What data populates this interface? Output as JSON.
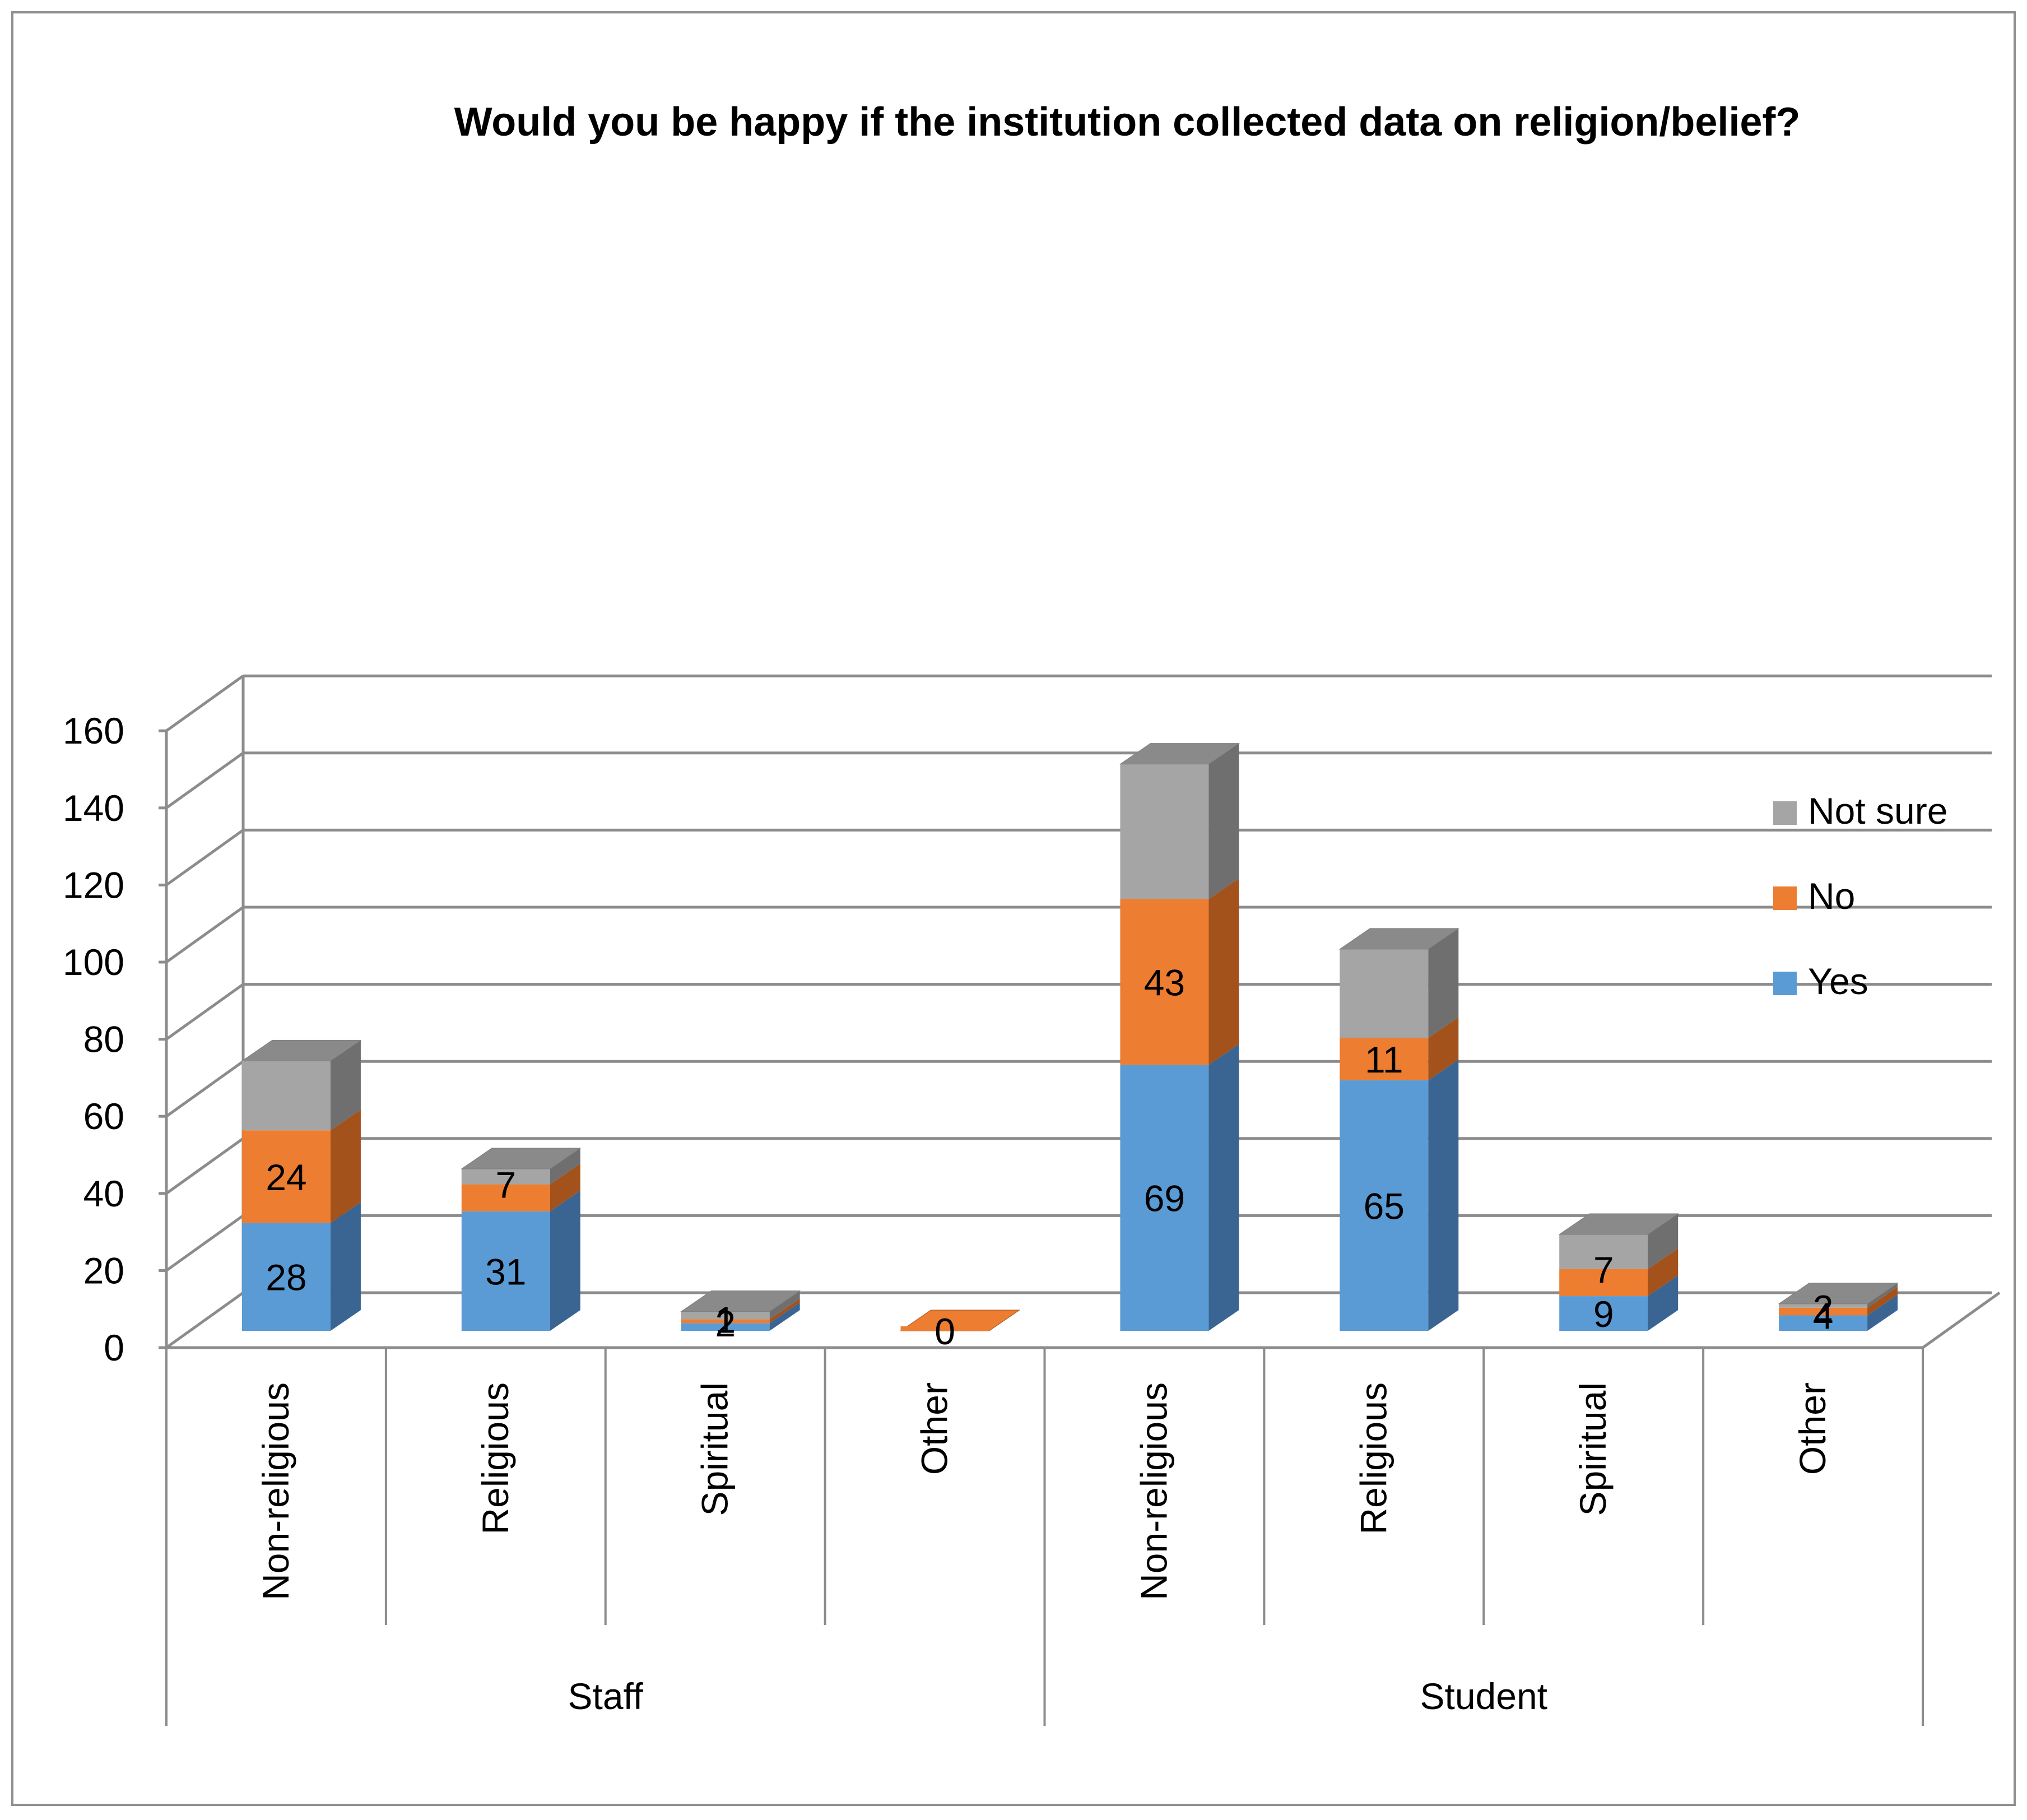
{
  "chart_data": {
    "type": "bar",
    "stacked": true,
    "style": "3d-column",
    "title": "Would you be happy if the institution collected data on religion/belief?",
    "categories": [
      "Non-religious",
      "Religious",
      "Spiritual",
      "Other",
      "Non-religious",
      "Religious",
      "Spiritual",
      "Other"
    ],
    "groups": [
      {
        "label": "Staff",
        "categories": [
          "Non-religious",
          "Religious",
          "Spiritual",
          "Other"
        ]
      },
      {
        "label": "Student",
        "categories": [
          "Non-religious",
          "Religious",
          "Spiritual",
          "Other"
        ]
      }
    ],
    "series": [
      {
        "name": "Yes",
        "color": "#5b9bd5",
        "side_color": "#3a6592",
        "values": [
          28,
          31,
          2,
          0,
          69,
          65,
          9,
          4
        ]
      },
      {
        "name": "No",
        "color": "#ed7d31",
        "side_color": "#a3521c",
        "values": [
          24,
          7,
          1,
          0,
          43,
          11,
          7,
          2
        ]
      },
      {
        "name": "Not sure",
        "color": "#a5a5a5",
        "side_color": "#6f6f6f",
        "values": [
          18,
          4,
          2,
          0,
          35,
          23,
          9,
          1
        ]
      }
    ],
    "shown_labels": [
      [
        "28",
        "31",
        "2",
        "0",
        "69",
        "65",
        "9",
        "4"
      ],
      [
        "24",
        "7",
        "1",
        "0",
        "43",
        "11",
        "7",
        "2"
      ],
      [
        "",
        "",
        "",
        "",
        "",
        "",
        "",
        ""
      ]
    ],
    "ylim": [
      0,
      160
    ],
    "yticks": [
      "0",
      "20",
      "40",
      "60",
      "80",
      "100",
      "120",
      "140",
      "160"
    ],
    "grid": true,
    "legend": {
      "position": "right",
      "entries": [
        "Not sure",
        "No",
        "Yes"
      ]
    },
    "xlabel": "",
    "ylabel": ""
  }
}
